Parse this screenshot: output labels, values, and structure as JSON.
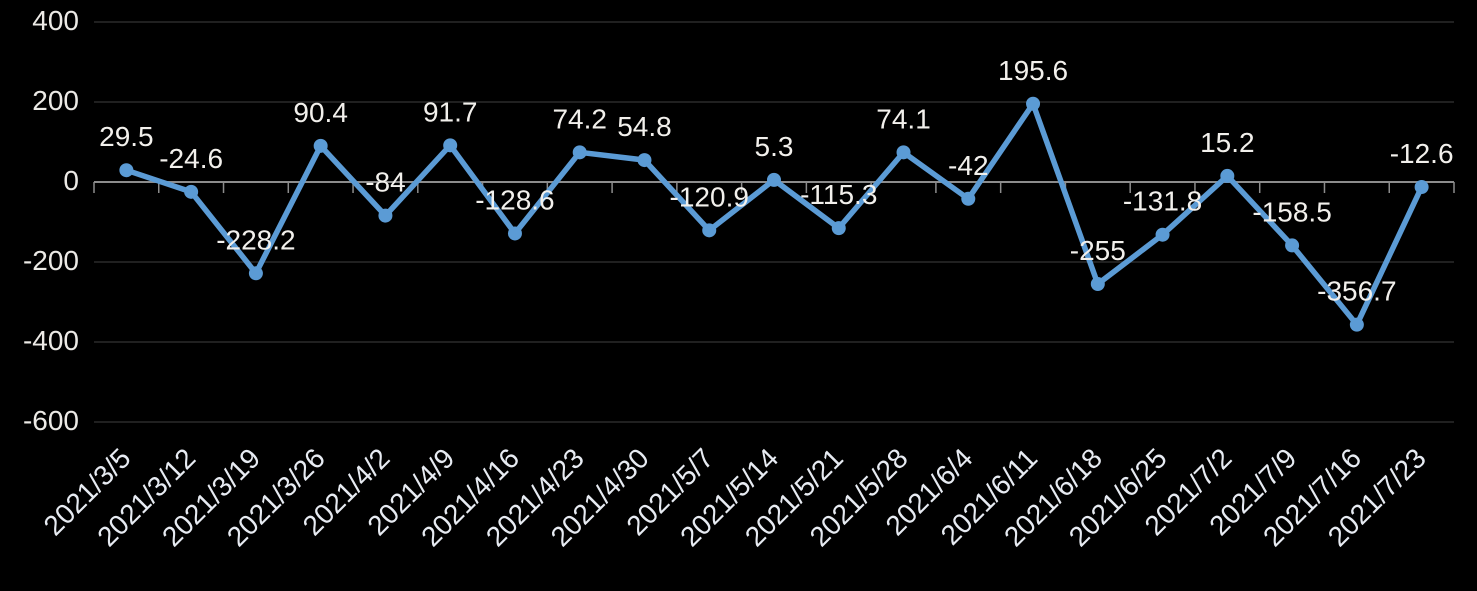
{
  "chart_data": {
    "type": "line",
    "title": "",
    "legend": "none",
    "grid": true,
    "marker": "circle",
    "categories": [
      "2021/3/5",
      "2021/3/12",
      "2021/3/19",
      "2021/3/26",
      "2021/4/2",
      "2021/4/9",
      "2021/4/16",
      "2021/4/23",
      "2021/4/30",
      "2021/5/7",
      "2021/5/14",
      "2021/5/21",
      "2021/5/28",
      "2021/6/4",
      "2021/6/11",
      "2021/6/18",
      "2021/6/25",
      "2021/7/2",
      "2021/7/9",
      "2021/7/16",
      "2021/7/23"
    ],
    "values": [
      29.5,
      -24.6,
      -228.2,
      90.4,
      -84,
      91.7,
      -128.6,
      74.2,
      54.8,
      -120.9,
      5.3,
      -115.3,
      74.1,
      -42,
      195.6,
      -255,
      -131.8,
      15.2,
      -158.5,
      -356.7,
      -12.6
    ],
    "point_labels": [
      "29.5",
      "-24.6",
      "-228.2",
      "90.4",
      "-84",
      "91.7",
      "-128.6",
      "74.2",
      "54.8",
      "-120.9",
      "5.3",
      "-115.3",
      "74.1",
      "-42",
      "195.6",
      "-255",
      "-131.8",
      "15.2",
      "-158.5",
      "-356.7",
      "-12.6"
    ],
    "xlabel": "",
    "ylabel": "",
    "y_axis": {
      "tick_values": [
        400,
        200,
        0,
        -200,
        -400,
        -600
      ],
      "tick_labels": [
        "400",
        "200",
        "0",
        "-200",
        "-400",
        "-600"
      ],
      "ylim": [
        -600,
        400
      ]
    },
    "x_axis": {
      "label_rotation_deg": -45
    },
    "colors": {
      "background": "#000000",
      "line": "#5b9bd5",
      "marker": "#5b9bd5",
      "gridline": "#2b2b2b",
      "axis_line": "#8c8c8c",
      "data_label": "#f2f0ec",
      "y_tick_label": "#eceae6",
      "x_tick_label": "#e7ebf2"
    }
  }
}
